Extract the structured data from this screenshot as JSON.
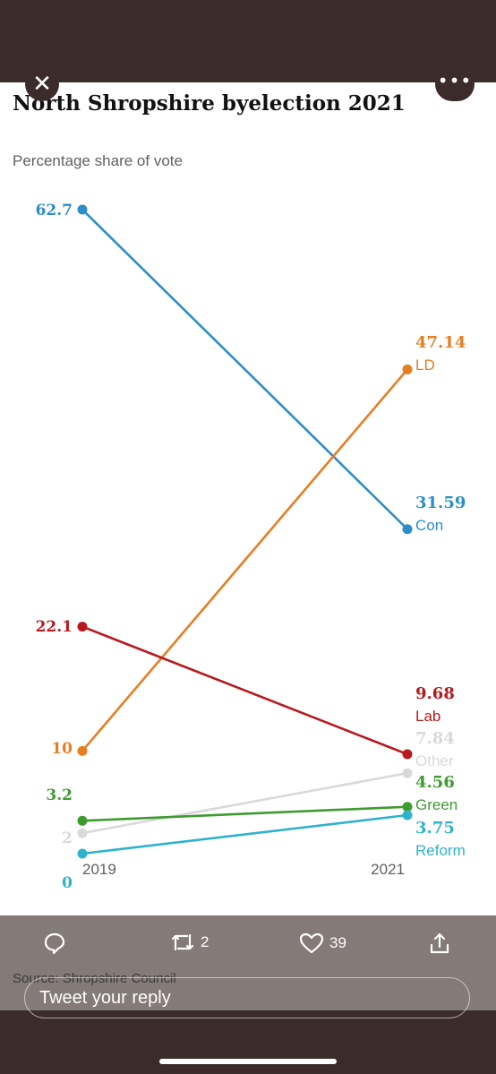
{
  "chart_data": {
    "type": "line",
    "title": "North Shropshire byelection 2021",
    "subtitle": "Percentage share of vote",
    "x": [
      "2019",
      "2021"
    ],
    "series": [
      {
        "name": "Con",
        "values": [
          62.7,
          31.59
        ],
        "left_label": "62.7",
        "right_label": "31.59",
        "color": "#2c8ec8"
      },
      {
        "name": "LD",
        "values": [
          10,
          47.14
        ],
        "left_label": "10",
        "right_label": "47.14",
        "color": "#e67e22"
      },
      {
        "name": "Lab",
        "values": [
          22.1,
          9.68
        ],
        "left_label": "22.1",
        "right_label": "9.68",
        "color": "#b8191e"
      },
      {
        "name": "Other",
        "values": [
          2,
          7.84
        ],
        "left_label": "2",
        "right_label": "7.84",
        "color": "#d9d9d9"
      },
      {
        "name": "Green",
        "values": [
          3.2,
          4.56
        ],
        "left_label": "3.2",
        "right_label": "4.56",
        "color": "#3e9b30"
      },
      {
        "name": "Reform",
        "values": [
          0,
          3.75
        ],
        "left_label": "0",
        "right_label": "3.75",
        "color": "#2fb2cc"
      }
    ],
    "source": "Source: Shropshire Council",
    "grid": false,
    "legend": "none"
  },
  "tweet": {
    "retweets": "2",
    "likes": "39",
    "reply_placeholder": "Tweet your reply"
  },
  "icons": {
    "close": "close-icon",
    "more": "more-icon",
    "reply": "reply-icon",
    "retweet": "retweet-icon",
    "like": "heart-icon",
    "share": "share-icon"
  },
  "colors": {
    "chrome": "#3b2c2b",
    "overlay": "#706461"
  }
}
